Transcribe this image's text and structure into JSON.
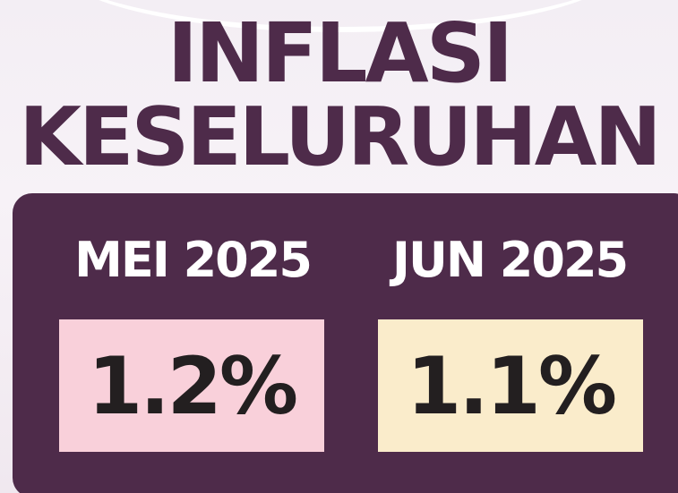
{
  "title_line1": "INFLASI",
  "title_line2": "KESELURUHAN",
  "items": [
    {
      "period": "MEI 2025",
      "value": "1.2%"
    },
    {
      "period": "JUN 2025",
      "value": "1.1%"
    }
  ]
}
